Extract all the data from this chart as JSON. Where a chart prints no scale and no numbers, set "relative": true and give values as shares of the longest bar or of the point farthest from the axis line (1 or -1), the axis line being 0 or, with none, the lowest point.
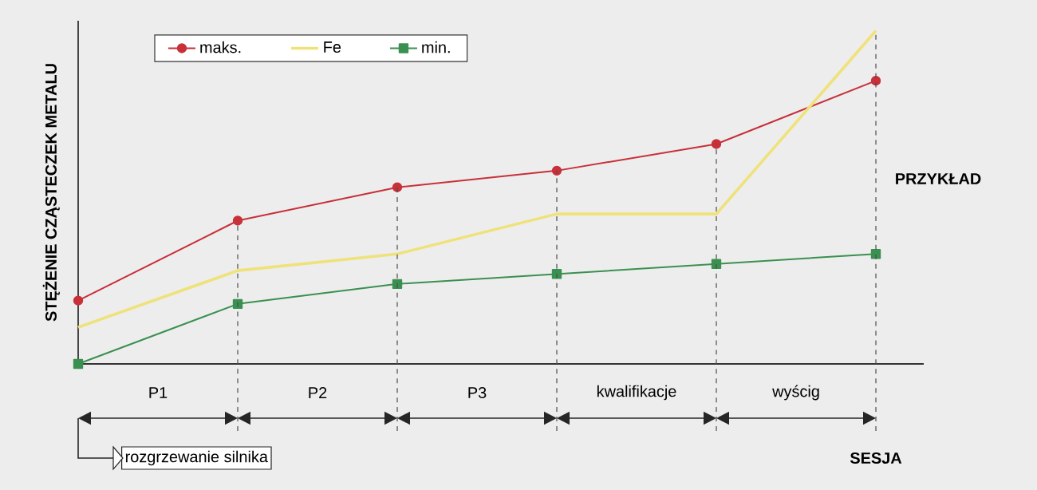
{
  "chart_data": {
    "type": "line",
    "relative": true,
    "ylabel": "STĘŻENIE CZĄSTECZEK METALU",
    "categories": [
      null,
      null,
      null,
      null,
      null,
      null
    ],
    "tick_labels": false,
    "legend": "top left",
    "grid": "x",
    "series": [
      {
        "name": "maks.",
        "color": "#c8303a",
        "marker": "circle",
        "values": [
          0.19,
          0.43,
          0.53,
          0.58,
          0.66,
          0.85
        ]
      },
      {
        "name": "Fe",
        "color": "#efe27a",
        "marker": "none",
        "values": [
          0.11,
          0.28,
          0.33,
          0.45,
          0.45,
          1
        ]
      },
      {
        "name": "min.",
        "color": "#3a9050",
        "marker": "square",
        "values": [
          0,
          0.18,
          0.24,
          0.27,
          0.3,
          0.33
        ]
      }
    ],
    "annotations": [
      "P1",
      "P2",
      "P3",
      "kwalifikacje",
      "wyścig",
      "rozgrzewanie silnika",
      "SESJA",
      "PRZYKŁAD"
    ]
  }
}
